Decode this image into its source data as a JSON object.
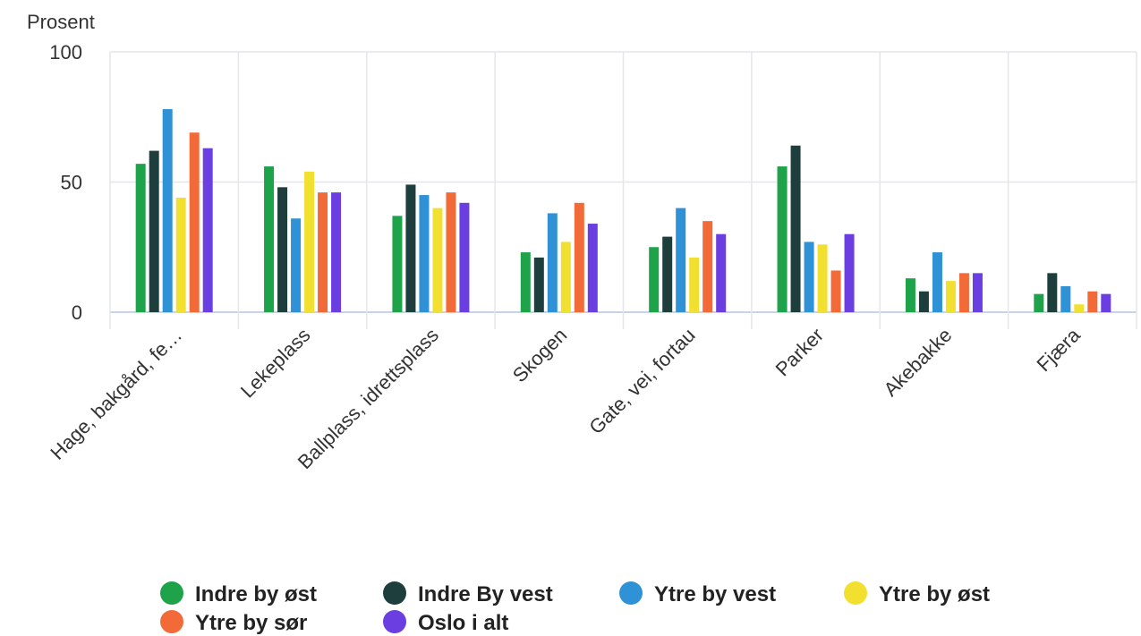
{
  "chart_data": {
    "type": "bar",
    "ylabel": "Prosent",
    "xlabel": "",
    "ylim": [
      0,
      100
    ],
    "yticks": [
      0,
      50,
      100
    ],
    "grid": true,
    "legend_position": "bottom",
    "categories": [
      "Hage, bakgård, fe…",
      "Lekeplass",
      "Ballplass, idrettsplass",
      "Skogen",
      "Gate, vei, fortau",
      "Parker",
      "Akebakke",
      "Fjæra"
    ],
    "series": [
      {
        "name": "Indre by øst",
        "color": "#1fa34a",
        "values": [
          57,
          56,
          37,
          23,
          25,
          56,
          13,
          7
        ]
      },
      {
        "name": "Indre By vest",
        "color": "#1e3d3d",
        "values": [
          62,
          48,
          49,
          21,
          29,
          64,
          8,
          15
        ]
      },
      {
        "name": "Ytre by vest",
        "color": "#2f91d6",
        "values": [
          78,
          36,
          45,
          38,
          40,
          27,
          23,
          10
        ]
      },
      {
        "name": "Ytre by øst",
        "color": "#f2e030",
        "values": [
          44,
          54,
          40,
          27,
          21,
          26,
          12,
          3
        ]
      },
      {
        "name": "Ytre by sør",
        "color": "#f26a38",
        "values": [
          69,
          46,
          46,
          42,
          35,
          16,
          15,
          8
        ]
      },
      {
        "name": "Oslo i alt",
        "color": "#6a3ee0",
        "values": [
          63,
          46,
          42,
          34,
          30,
          30,
          15,
          7
        ]
      }
    ]
  }
}
